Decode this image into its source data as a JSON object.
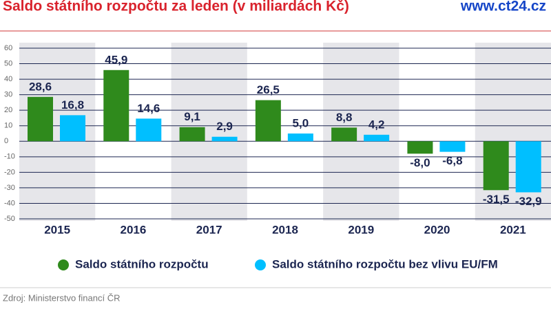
{
  "chart_data": {
    "type": "bar",
    "title": "Saldo státního rozpočtu za leden (v miliardách Kč)",
    "brand": "www.ct24.cz",
    "source": "Zdroj: Ministerstvo financí ČR",
    "categories": [
      "2015",
      "2016",
      "2017",
      "2018",
      "2019",
      "2020",
      "2021"
    ],
    "series": [
      {
        "name": "Saldo státního rozpočtu",
        "color": "#2f8a1c",
        "values": [
          28.6,
          45.9,
          9.1,
          26.5,
          8.8,
          -8.0,
          -31.5
        ],
        "value_labels": [
          "28,6",
          "45,9",
          "9,1",
          "26,5",
          "8,8",
          "-8,0",
          "-31,5"
        ]
      },
      {
        "name": "Saldo státního rozpočtu bez vlivu EU/FM",
        "color": "#00bfff",
        "values": [
          16.8,
          14.6,
          2.9,
          5.0,
          4.2,
          -6.8,
          -32.9
        ],
        "value_labels": [
          "16,8",
          "14,6",
          "2,9",
          "5,0",
          "4,2",
          "-6,8",
          "-32,9"
        ]
      }
    ],
    "ylim": [
      -50,
      60
    ],
    "yticks": [
      -50,
      -40,
      -30,
      -20,
      -10,
      0,
      10,
      20,
      30,
      40,
      50,
      60
    ],
    "grid": true,
    "legend": "bottom"
  }
}
